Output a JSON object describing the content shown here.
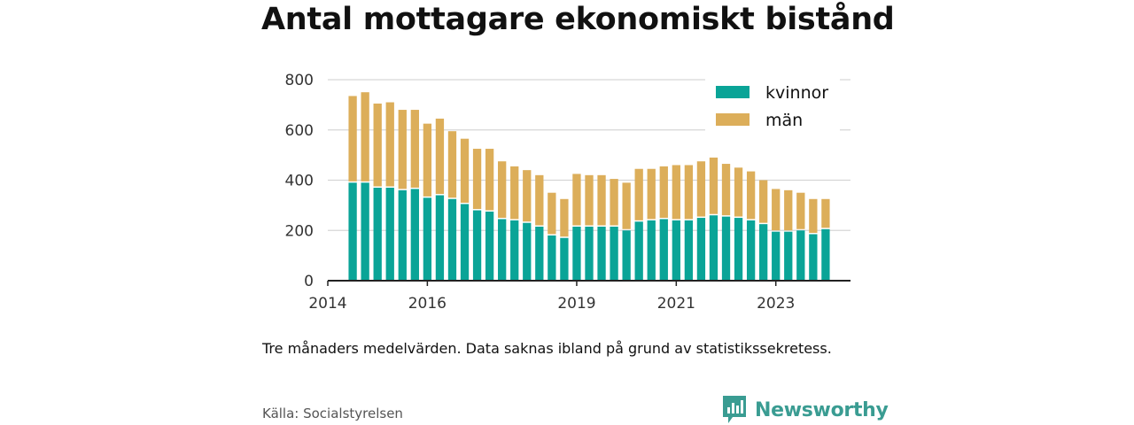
{
  "header": {
    "title": "Antal mottagare ekonomiskt bistånd"
  },
  "note": "Tre månaders medelvärden. Data saknas ibland på grund av statistikssekretess.",
  "source": "Källa: Socialstyrelsen",
  "brand": {
    "name": "Newsworthy",
    "icon": "newsworthy-logo-icon",
    "color": "#3a9c92"
  },
  "colors": {
    "kvinnor": "#0aa497",
    "man": "#dcae5a",
    "grid": "#d6d6d6",
    "axis": "#222222"
  },
  "chart_data": {
    "type": "bar",
    "stacked": true,
    "title": "Antal mottagare ekonomiskt bistånd",
    "xlabel": "",
    "ylabel": "",
    "ylim": [
      0,
      800
    ],
    "yticks": [
      0,
      200,
      400,
      600,
      800
    ],
    "xtick_labels": [
      "2014",
      "2016",
      "2019",
      "2021",
      "2023"
    ],
    "xlim": [
      "2014-01",
      "2024-07"
    ],
    "grid": true,
    "legend_position": "top-right",
    "x": [
      "2014-07",
      "2014-10",
      "2015-01",
      "2015-04",
      "2015-07",
      "2015-10",
      "2016-01",
      "2016-04",
      "2016-07",
      "2016-10",
      "2017-01",
      "2017-04",
      "2017-07",
      "2017-10",
      "2018-01",
      "2018-04",
      "2018-07",
      "2018-10",
      "2019-01",
      "2019-04",
      "2019-07",
      "2019-10",
      "2020-01",
      "2020-04",
      "2020-07",
      "2020-10",
      "2021-01",
      "2021-04",
      "2021-07",
      "2021-10",
      "2022-01",
      "2022-04",
      "2022-07",
      "2022-10",
      "2023-01",
      "2023-04",
      "2023-07",
      "2023-10",
      "2024-01"
    ],
    "series": [
      {
        "name": "kvinnor",
        "values": [
          390,
          390,
          370,
          370,
          360,
          365,
          330,
          340,
          325,
          305,
          280,
          275,
          245,
          240,
          230,
          215,
          180,
          170,
          215,
          215,
          215,
          215,
          200,
          235,
          240,
          245,
          240,
          240,
          250,
          260,
          255,
          250,
          240,
          225,
          195,
          195,
          200,
          185,
          205
        ]
      },
      {
        "name": "män",
        "values": [
          345,
          360,
          335,
          340,
          320,
          315,
          295,
          305,
          270,
          260,
          245,
          250,
          230,
          215,
          210,
          205,
          170,
          155,
          210,
          205,
          205,
          190,
          190,
          210,
          205,
          210,
          220,
          220,
          225,
          230,
          210,
          200,
          195,
          175,
          170,
          165,
          150,
          140,
          120
        ]
      }
    ]
  }
}
